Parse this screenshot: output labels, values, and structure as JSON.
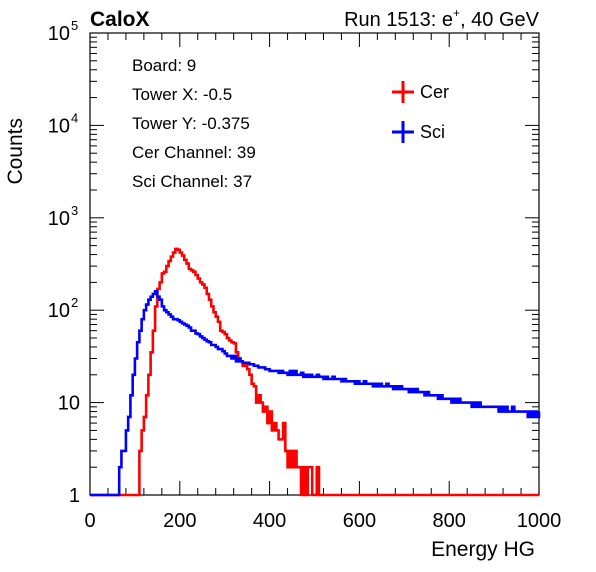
{
  "header": {
    "left_label": "CaloX",
    "right_label_pre": "Run 1513: e",
    "right_label_sup": "+",
    "right_label_post": ", 40 GeV"
  },
  "info_box": [
    "Board: 9",
    "Tower X: -0.5",
    "Tower Y: -0.375",
    "Cer Channel: 39",
    "Sci Channel: 37"
  ],
  "chart_data": {
    "type": "line",
    "title": "",
    "xlabel": "Energy HG",
    "ylabel": "Counts",
    "xlim": [
      0,
      1000
    ],
    "ylim": [
      1,
      100000
    ],
    "y_scale": "log",
    "x_ticks": [
      "0",
      "200",
      "400",
      "600",
      "800",
      "1000"
    ],
    "y_ticks": [
      {
        "value": 1,
        "label": "1"
      },
      {
        "value": 10,
        "label": "10"
      },
      {
        "value": 100,
        "label": "10",
        "sup": "2"
      },
      {
        "value": 1000,
        "label": "10",
        "sup": "3"
      },
      {
        "value": 10000,
        "label": "10",
        "sup": "4"
      },
      {
        "value": 100000,
        "label": "10",
        "sup": "5"
      }
    ],
    "legend_position": "top-right",
    "series": [
      {
        "name": "Cer",
        "color": "#ff0000",
        "points": [
          [
            0,
            1
          ],
          [
            10,
            1
          ],
          [
            20,
            1
          ],
          [
            30,
            1
          ],
          [
            40,
            1
          ],
          [
            45,
            1
          ],
          [
            50,
            1
          ],
          [
            55,
            1
          ],
          [
            60,
            1
          ],
          [
            65,
            1
          ],
          [
            70,
            1
          ],
          [
            75,
            1
          ],
          [
            80,
            1
          ],
          [
            85,
            1
          ],
          [
            90,
            1
          ],
          [
            95,
            1
          ],
          [
            100,
            1
          ],
          [
            105,
            1
          ],
          [
            110,
            3
          ],
          [
            115,
            5
          ],
          [
            120,
            7
          ],
          [
            125,
            12
          ],
          [
            130,
            20
          ],
          [
            135,
            35
          ],
          [
            140,
            60
          ],
          [
            145,
            110
          ],
          [
            150,
            170
          ],
          [
            155,
            200
          ],
          [
            160,
            250
          ],
          [
            165,
            260
          ],
          [
            170,
            300
          ],
          [
            175,
            340
          ],
          [
            180,
            380
          ],
          [
            185,
            420
          ],
          [
            190,
            460
          ],
          [
            195,
            450
          ],
          [
            200,
            420
          ],
          [
            205,
            390
          ],
          [
            210,
            350
          ],
          [
            215,
            320
          ],
          [
            220,
            280
          ],
          [
            225,
            270
          ],
          [
            230,
            260
          ],
          [
            235,
            240
          ],
          [
            240,
            220
          ],
          [
            245,
            200
          ],
          [
            250,
            190
          ],
          [
            255,
            175
          ],
          [
            260,
            150
          ],
          [
            265,
            130
          ],
          [
            270,
            110
          ],
          [
            275,
            95
          ],
          [
            280,
            85
          ],
          [
            285,
            75
          ],
          [
            290,
            60
          ],
          [
            295,
            58
          ],
          [
            300,
            55
          ],
          [
            305,
            50
          ],
          [
            310,
            47
          ],
          [
            315,
            45
          ],
          [
            320,
            44
          ],
          [
            325,
            35
          ],
          [
            330,
            30
          ],
          [
            335,
            28
          ],
          [
            340,
            25
          ],
          [
            345,
            27
          ],
          [
            350,
            23
          ],
          [
            355,
            20
          ],
          [
            360,
            16
          ],
          [
            365,
            15
          ],
          [
            370,
            10
          ],
          [
            375,
            12
          ],
          [
            380,
            10
          ],
          [
            385,
            8
          ],
          [
            390,
            9
          ],
          [
            395,
            6
          ],
          [
            400,
            8
          ],
          [
            405,
            5
          ],
          [
            410,
            6
          ],
          [
            415,
            5
          ],
          [
            420,
            4
          ],
          [
            425,
            4
          ],
          [
            430,
            6
          ],
          [
            435,
            3
          ],
          [
            440,
            2
          ],
          [
            445,
            3
          ],
          [
            450,
            2
          ],
          [
            455,
            3
          ],
          [
            460,
            2
          ],
          [
            465,
            2
          ],
          [
            470,
            1
          ],
          [
            475,
            2
          ],
          [
            480,
            1
          ],
          [
            485,
            2
          ],
          [
            490,
            2
          ],
          [
            495,
            1
          ],
          [
            500,
            1
          ],
          [
            505,
            2
          ],
          [
            510,
            1
          ],
          [
            520,
            1
          ],
          [
            530,
            1
          ],
          [
            540,
            1
          ],
          [
            560,
            1
          ],
          [
            580,
            1
          ],
          [
            600,
            1
          ],
          [
            640,
            1
          ],
          [
            700,
            1
          ],
          [
            800,
            1
          ],
          [
            900,
            1
          ],
          [
            1000,
            1
          ]
        ]
      },
      {
        "name": "Sci",
        "color": "#0000ff",
        "points": [
          [
            0,
            1
          ],
          [
            40,
            1
          ],
          [
            50,
            1
          ],
          [
            55,
            1
          ],
          [
            60,
            1
          ],
          [
            65,
            2
          ],
          [
            70,
            3
          ],
          [
            75,
            3
          ],
          [
            80,
            5
          ],
          [
            85,
            7
          ],
          [
            90,
            12
          ],
          [
            95,
            20
          ],
          [
            100,
            30
          ],
          [
            105,
            45
          ],
          [
            110,
            60
          ],
          [
            115,
            80
          ],
          [
            120,
            100
          ],
          [
            125,
            115
          ],
          [
            130,
            130
          ],
          [
            135,
            140
          ],
          [
            140,
            150
          ],
          [
            145,
            160
          ],
          [
            150,
            140
          ],
          [
            155,
            130
          ],
          [
            160,
            110
          ],
          [
            165,
            100
          ],
          [
            170,
            95
          ],
          [
            175,
            90
          ],
          [
            180,
            85
          ],
          [
            185,
            80
          ],
          [
            190,
            80
          ],
          [
            195,
            78
          ],
          [
            200,
            75
          ],
          [
            205,
            72
          ],
          [
            210,
            70
          ],
          [
            215,
            68
          ],
          [
            220,
            65
          ],
          [
            225,
            60
          ],
          [
            230,
            60
          ],
          [
            235,
            56
          ],
          [
            240,
            55
          ],
          [
            245,
            52
          ],
          [
            250,
            50
          ],
          [
            255,
            48
          ],
          [
            260,
            46
          ],
          [
            265,
            45
          ],
          [
            270,
            42
          ],
          [
            275,
            42
          ],
          [
            280,
            40
          ],
          [
            285,
            38
          ],
          [
            290,
            38
          ],
          [
            295,
            36
          ],
          [
            300,
            34
          ],
          [
            305,
            32
          ],
          [
            310,
            32
          ],
          [
            315,
            30
          ],
          [
            320,
            32
          ],
          [
            325,
            28
          ],
          [
            330,
            30
          ],
          [
            335,
            28
          ],
          [
            340,
            27
          ],
          [
            345,
            27
          ],
          [
            350,
            27
          ],
          [
            355,
            26
          ],
          [
            360,
            26
          ],
          [
            365,
            25
          ],
          [
            370,
            25
          ],
          [
            375,
            24
          ],
          [
            380,
            24
          ],
          [
            385,
            24
          ],
          [
            390,
            23
          ],
          [
            395,
            23
          ],
          [
            400,
            22
          ],
          [
            405,
            22
          ],
          [
            410,
            22
          ],
          [
            415,
            22
          ],
          [
            420,
            21
          ],
          [
            425,
            22
          ],
          [
            430,
            21
          ],
          [
            435,
            21
          ],
          [
            440,
            20
          ],
          [
            445,
            22
          ],
          [
            450,
            20
          ],
          [
            455,
            22
          ],
          [
            460,
            20
          ],
          [
            465,
            20
          ],
          [
            470,
            21
          ],
          [
            475,
            19
          ],
          [
            480,
            20
          ],
          [
            485,
            19
          ],
          [
            490,
            20
          ],
          [
            495,
            19
          ],
          [
            500,
            19
          ],
          [
            505,
            20
          ],
          [
            510,
            19
          ],
          [
            515,
            19
          ],
          [
            520,
            18
          ],
          [
            525,
            19
          ],
          [
            530,
            18
          ],
          [
            535,
            18
          ],
          [
            540,
            19
          ],
          [
            545,
            18
          ],
          [
            550,
            18
          ],
          [
            555,
            18
          ],
          [
            560,
            17
          ],
          [
            565,
            18
          ],
          [
            570,
            17
          ],
          [
            575,
            17
          ],
          [
            580,
            17
          ],
          [
            585,
            17
          ],
          [
            590,
            16
          ],
          [
            595,
            17
          ],
          [
            600,
            16
          ],
          [
            605,
            16
          ],
          [
            610,
            17
          ],
          [
            615,
            16
          ],
          [
            620,
            16
          ],
          [
            625,
            16
          ],
          [
            630,
            15
          ],
          [
            635,
            16
          ],
          [
            640,
            15
          ],
          [
            645,
            16
          ],
          [
            650,
            15
          ],
          [
            655,
            15
          ],
          [
            660,
            16
          ],
          [
            665,
            15
          ],
          [
            670,
            15
          ],
          [
            675,
            14
          ],
          [
            680,
            15
          ],
          [
            685,
            14
          ],
          [
            690,
            15
          ],
          [
            695,
            14
          ],
          [
            700,
            14
          ],
          [
            705,
            14
          ],
          [
            710,
            13
          ],
          [
            715,
            14
          ],
          [
            720,
            13
          ],
          [
            725,
            14
          ],
          [
            730,
            13
          ],
          [
            735,
            13
          ],
          [
            740,
            13
          ],
          [
            745,
            12
          ],
          [
            750,
            13
          ],
          [
            755,
            12
          ],
          [
            760,
            12
          ],
          [
            765,
            12
          ],
          [
            770,
            12
          ],
          [
            775,
            11
          ],
          [
            780,
            12
          ],
          [
            785,
            11
          ],
          [
            790,
            11
          ],
          [
            795,
            11
          ],
          [
            800,
            11
          ],
          [
            805,
            10
          ],
          [
            810,
            11
          ],
          [
            815,
            10
          ],
          [
            820,
            11
          ],
          [
            825,
            10
          ],
          [
            830,
            10
          ],
          [
            835,
            10
          ],
          [
            840,
            10
          ],
          [
            845,
            10
          ],
          [
            850,
            9
          ],
          [
            855,
            10
          ],
          [
            860,
            9
          ],
          [
            865,
            10
          ],
          [
            870,
            9
          ],
          [
            875,
            9
          ],
          [
            880,
            9
          ],
          [
            885,
            9
          ],
          [
            890,
            9
          ],
          [
            895,
            9
          ],
          [
            900,
            9
          ],
          [
            905,
            9
          ],
          [
            910,
            8
          ],
          [
            915,
            9
          ],
          [
            920,
            8
          ],
          [
            925,
            9
          ],
          [
            930,
            8
          ],
          [
            935,
            8
          ],
          [
            940,
            9
          ],
          [
            945,
            8
          ],
          [
            950,
            8
          ],
          [
            955,
            8
          ],
          [
            960,
            8
          ],
          [
            965,
            8
          ],
          [
            970,
            8
          ],
          [
            975,
            7
          ],
          [
            980,
            8
          ],
          [
            985,
            7
          ],
          [
            990,
            8
          ],
          [
            995,
            7
          ],
          [
            1000,
            8
          ]
        ]
      }
    ]
  }
}
